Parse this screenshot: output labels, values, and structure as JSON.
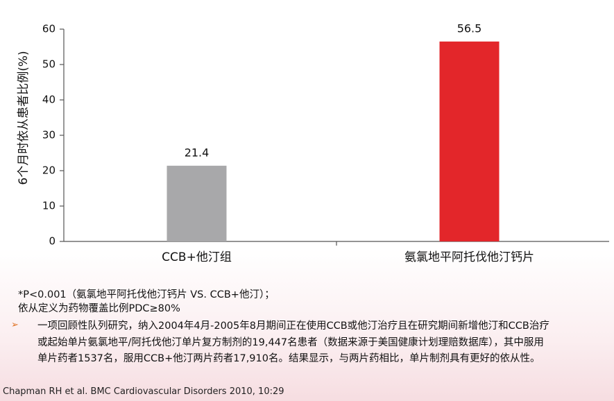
{
  "chart_data": {
    "type": "bar",
    "ylabel": "6个月时依从患者比例(%)",
    "categories": [
      "CCB+他汀组",
      "氨氯地平阿托伐他汀钙片"
    ],
    "values": [
      21.4,
      56.5
    ],
    "colors": [
      "#a8a8aa",
      "#e3262a"
    ],
    "ylim": [
      0,
      60
    ],
    "yticks": [
      0,
      10,
      20,
      30,
      40,
      50,
      60
    ],
    "grid": false
  },
  "notes": [
    "*P<0.001（氨氯地平阿托伐他汀钙片  VS. CCB+他汀）；",
    "依从定义为药物覆盖比例PDC≥80%"
  ],
  "bullet_lines": [
    "一项回顾性队列研究，纳入2004年4月-2005年8月期间正在使用CCB或他汀治疗且在研究期间新增他汀和CCB治疗",
    "或起始单片氨氯地平/阿托伐他汀单片复方制剂的19,447名患者（数据来源于美国健康计划理赔数据库），其中服用",
    "单片药者1537名，服用CCB+他汀两片药者17,910名。结果显示，与两片药相比，单片制剂具有更好的依从性。"
  ],
  "citation": "Chapman RH et al. BMC Cardiovascular Disorders 2010, 10:29"
}
